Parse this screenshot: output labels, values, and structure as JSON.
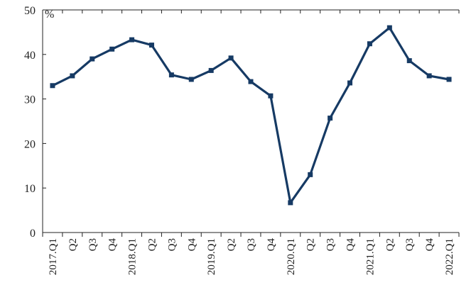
{
  "chart_data": {
    "type": "line",
    "unit_label": "%",
    "ylim": [
      0,
      50
    ],
    "yticks": [
      0,
      10,
      20,
      30,
      40,
      50
    ],
    "ytick_labels": [
      "0",
      "10",
      "20",
      "30",
      "40",
      "50"
    ],
    "grid": false,
    "legend": "none",
    "categories": [
      "2017.Q1",
      "Q2",
      "Q3",
      "Q4",
      "2018.Q1",
      "Q2",
      "Q3",
      "Q4",
      "2019.Q1",
      "Q2",
      "Q3",
      "Q4",
      "2020.Q1",
      "Q2",
      "Q3",
      "Q4",
      "2021.Q1",
      "Q2",
      "Q3",
      "Q4",
      "2022.Q1"
    ],
    "series": [
      {
        "values": [
          33.0,
          35.2,
          39.0,
          41.2,
          43.3,
          42.1,
          35.4,
          34.4,
          36.4,
          39.2,
          33.9,
          30.7,
          6.7,
          13.0,
          25.7,
          33.6,
          42.4,
          46.0,
          38.6,
          35.2,
          34.4
        ],
        "color": "#163a64"
      }
    ]
  }
}
